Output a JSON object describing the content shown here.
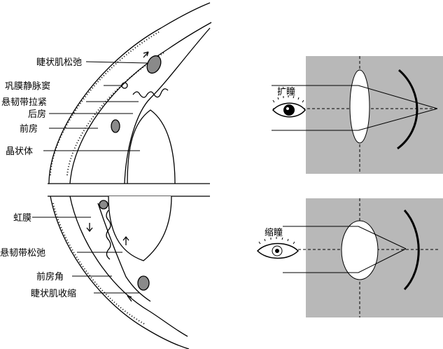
{
  "labels": {
    "ciliary_relax": "睫状肌松弛",
    "schlemm": "巩膜静脉窦",
    "zonule_tight": "悬韧带拉紧",
    "posterior_chamber": "后房",
    "anterior_chamber": "前房",
    "lens": "晶状体",
    "iris": "虹膜",
    "zonule_slack": "悬韧带松弛",
    "chamber_angle": "前房角",
    "ciliary_contract": "睫状肌收缩"
  },
  "panels": {
    "dilate_label": "扩瞳",
    "constrict_label": "缩瞳"
  },
  "colors": {
    "panel_bg": "#b8b8b8",
    "lens_fill": "#ffffff",
    "ciliary_fill": "#8a8a8a",
    "ink": "#000000"
  }
}
